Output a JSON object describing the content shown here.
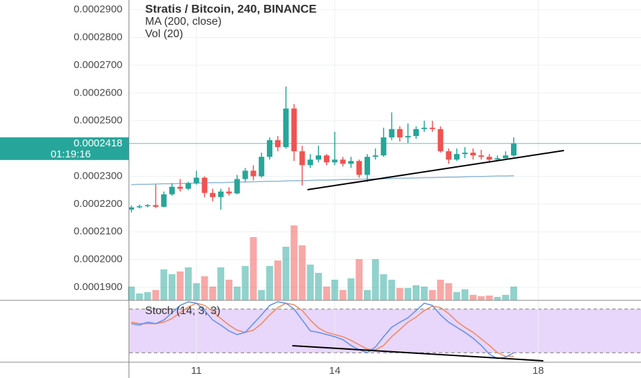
{
  "chart_data": {
    "type": "candlestick",
    "title": "Stratis / Bitcoin, 240, BINANCE",
    "categories": [
      null,
      null,
      null,
      null,
      null,
      null,
      null,
      null,
      null,
      null,
      null,
      null,
      null,
      null,
      null,
      null,
      null,
      null,
      null,
      null,
      null,
      null,
      null,
      null,
      null,
      null,
      null,
      null,
      null,
      null,
      null,
      null,
      null,
      null,
      null,
      null,
      null,
      null,
      null,
      null,
      null,
      null,
      null,
      null,
      null,
      null,
      null,
      null
    ],
    "open": [
      0.000218,
      0.0002188,
      0.0002192,
      0.0002196,
      0.000219,
      0.0002235,
      0.0002262,
      0.0002255,
      0.0002275,
      0.0002295,
      0.000224,
      0.0002225,
      0.0002245,
      0.0002238,
      0.000229,
      0.000232,
      0.00023,
      0.000237,
      0.000243,
      0.0002405,
      0.0002544,
      0.000239,
      0.000234,
      0.000236,
      0.0002375,
      0.000235,
      0.000236,
      0.0002345,
      0.0002355,
      0.0002305,
      0.000237,
      0.0002375,
      0.000244,
      0.000247,
      0.000244,
      0.0002445,
      0.000247,
      0.0002475,
      0.000247,
      0.000239,
      0.000236,
      0.000238,
      0.0002385,
      0.0002375,
      0.000237,
      0.000236,
      0.0002365,
      0.0002375
    ],
    "close": [
      0.0002188,
      0.0002192,
      0.0002196,
      0.000219,
      0.0002235,
      0.0002262,
      0.0002255,
      0.0002275,
      0.0002295,
      0.000224,
      0.0002225,
      0.0002245,
      0.0002238,
      0.000229,
      0.000232,
      0.00023,
      0.000237,
      0.000243,
      0.0002405,
      0.0002544,
      0.000239,
      0.000234,
      0.000236,
      0.0002375,
      0.000235,
      0.000236,
      0.0002345,
      0.0002355,
      0.0002305,
      0.000237,
      0.0002375,
      0.000244,
      0.000247,
      0.000244,
      0.0002445,
      0.000247,
      0.0002475,
      0.000247,
      0.000239,
      0.000236,
      0.000238,
      0.0002385,
      0.0002375,
      0.000237,
      0.000236,
      0.0002365,
      0.0002375,
      0.0002418
    ],
    "high": [
      0.0002195,
      0.0002198,
      0.00022,
      0.000227,
      0.0002245,
      0.0002275,
      0.000229,
      0.000228,
      0.000232,
      0.00023,
      0.0002255,
      0.0002255,
      0.000226,
      0.0002305,
      0.000233,
      0.000234,
      0.0002385,
      0.000244,
      0.0002445,
      0.0002623,
      0.000256,
      0.000241,
      0.000238,
      0.000241,
      0.000238,
      0.000246,
      0.000237,
      0.000237,
      0.000236,
      0.000238,
      0.00024,
      0.0002475,
      0.000253,
      0.000248,
      0.000249,
      0.000248,
      0.00025,
      0.00025,
      0.000248,
      0.00024,
      0.00024,
      0.0002405,
      0.00024,
      0.0002395,
      0.000238,
      0.0002375,
      0.000239,
      0.000244
    ],
    "low": [
      0.000217,
      0.0002184,
      0.0002188,
      0.0002185,
      0.0002188,
      0.000223,
      0.0002245,
      0.000225,
      0.000227,
      0.0002225,
      0.000221,
      0.000218,
      0.000223,
      0.0002235,
      0.000228,
      0.0002285,
      0.0002295,
      0.000236,
      0.000239,
      0.00024,
      0.0002355,
      0.0002267,
      0.000233,
      0.000235,
      0.000234,
      0.000234,
      0.0002335,
      0.000233,
      0.0002295,
      0.000228,
      0.000236,
      0.000237,
      0.000243,
      0.0002425,
      0.000242,
      0.0002435,
      0.000246,
      0.000246,
      0.0002385,
      0.0002345,
      0.0002355,
      0.0002365,
      0.000236,
      0.000236,
      0.000235,
      0.0002355,
      0.000236,
      0.000237
    ],
    "up_color": "#26a69a",
    "down_color": "#ef5350",
    "ylim": [
      0.0001853,
      0.0002935
    ],
    "yticks": [
      {
        "value": 0.00029,
        "label": "0.0002900"
      },
      {
        "value": 0.00028,
        "label": "0.0002800"
      },
      {
        "value": 0.00027,
        "label": "0.0002700"
      },
      {
        "value": 0.00026,
        "label": "0.0002600"
      },
      {
        "value": 0.00025,
        "label": "0.0002500"
      },
      {
        "value": 0.00023,
        "label": "0.0002300"
      },
      {
        "value": 0.00022,
        "label": "0.0002200"
      },
      {
        "value": 0.00021,
        "label": "0.0002100"
      },
      {
        "value": 0.0002,
        "label": "0.0002000"
      },
      {
        "value": 0.00019,
        "label": "0.0001900"
      }
    ],
    "xlim": [
      -0.25,
      62.64
    ],
    "xticks": [
      {
        "value": 8,
        "label": "11"
      },
      {
        "value": 25,
        "label": "14"
      },
      {
        "value": 50,
        "label": "18"
      }
    ],
    "grid": true,
    "last_price": 0.0002418,
    "countdown": "01:19:16",
    "ma": {
      "name": "MA (200, close)",
      "color": "#8fb9d6",
      "values": [
        0.000227,
        0.0002271,
        0.0002271,
        0.0002272,
        0.0002273,
        0.0002273,
        0.0002274,
        0.0002275,
        0.0002275,
        0.0002276,
        0.0002277,
        0.0002277,
        0.0002278,
        0.0002279,
        0.0002279,
        0.000228,
        0.0002281,
        0.0002282,
        0.0002282,
        0.0002283,
        0.0002284,
        0.0002284,
        0.0002285,
        0.0002286,
        0.0002286,
        0.0002287,
        0.0002288,
        0.0002288,
        0.0002289,
        0.000229,
        0.000229,
        0.0002291,
        0.0002292,
        0.0002293,
        0.0002293,
        0.0002294,
        0.0002295,
        0.0002295,
        0.0002296,
        0.0002297,
        0.0002297,
        0.0002298,
        0.0002299,
        0.0002299,
        0.00023,
        0.0002301,
        0.0002301,
        0.0002302
      ]
    },
    "volume": {
      "name": "Vol (20)",
      "values": [
        20,
        10,
        12,
        15,
        45,
        38,
        42,
        48,
        25,
        35,
        20,
        48,
        30,
        20,
        50,
        92,
        15,
        50,
        58,
        78,
        109,
        80,
        52,
        40,
        20,
        30,
        15,
        32,
        60,
        15,
        60,
        38,
        30,
        18,
        18,
        22,
        20,
        15,
        30,
        25,
        12,
        16,
        8,
        6,
        7,
        5,
        8,
        20
      ]
    },
    "stoch": {
      "name": "Stoch (14, 3, 3)",
      "ylim": [
        7,
        92
      ],
      "bands": [
        20,
        80
      ],
      "k": {
        "color": "#5b8def",
        "values": [
          60,
          58,
          62,
          60,
          65,
          75,
          85,
          90,
          88,
          78,
          65,
          58,
          50,
          45,
          48,
          60,
          72,
          85,
          90,
          88,
          80,
          65,
          50,
          48,
          45,
          42,
          38,
          30,
          24,
          20,
          28,
          42,
          55,
          62,
          68,
          78,
          88,
          85,
          72,
          62,
          55,
          48,
          40,
          30,
          18,
          12,
          14,
          20
        ]
      },
      "d": {
        "color": "#f0855a",
        "values": [
          62,
          60,
          60,
          60,
          62,
          67,
          75,
          83,
          88,
          85,
          77,
          67,
          58,
          51,
          48,
          51,
          60,
          72,
          82,
          88,
          86,
          78,
          65,
          54,
          48,
          45,
          42,
          37,
          31,
          25,
          24,
          30,
          42,
          52,
          62,
          69,
          78,
          84,
          82,
          74,
          63,
          55,
          48,
          39,
          30,
          20,
          15,
          15
        ]
      }
    }
  }
}
